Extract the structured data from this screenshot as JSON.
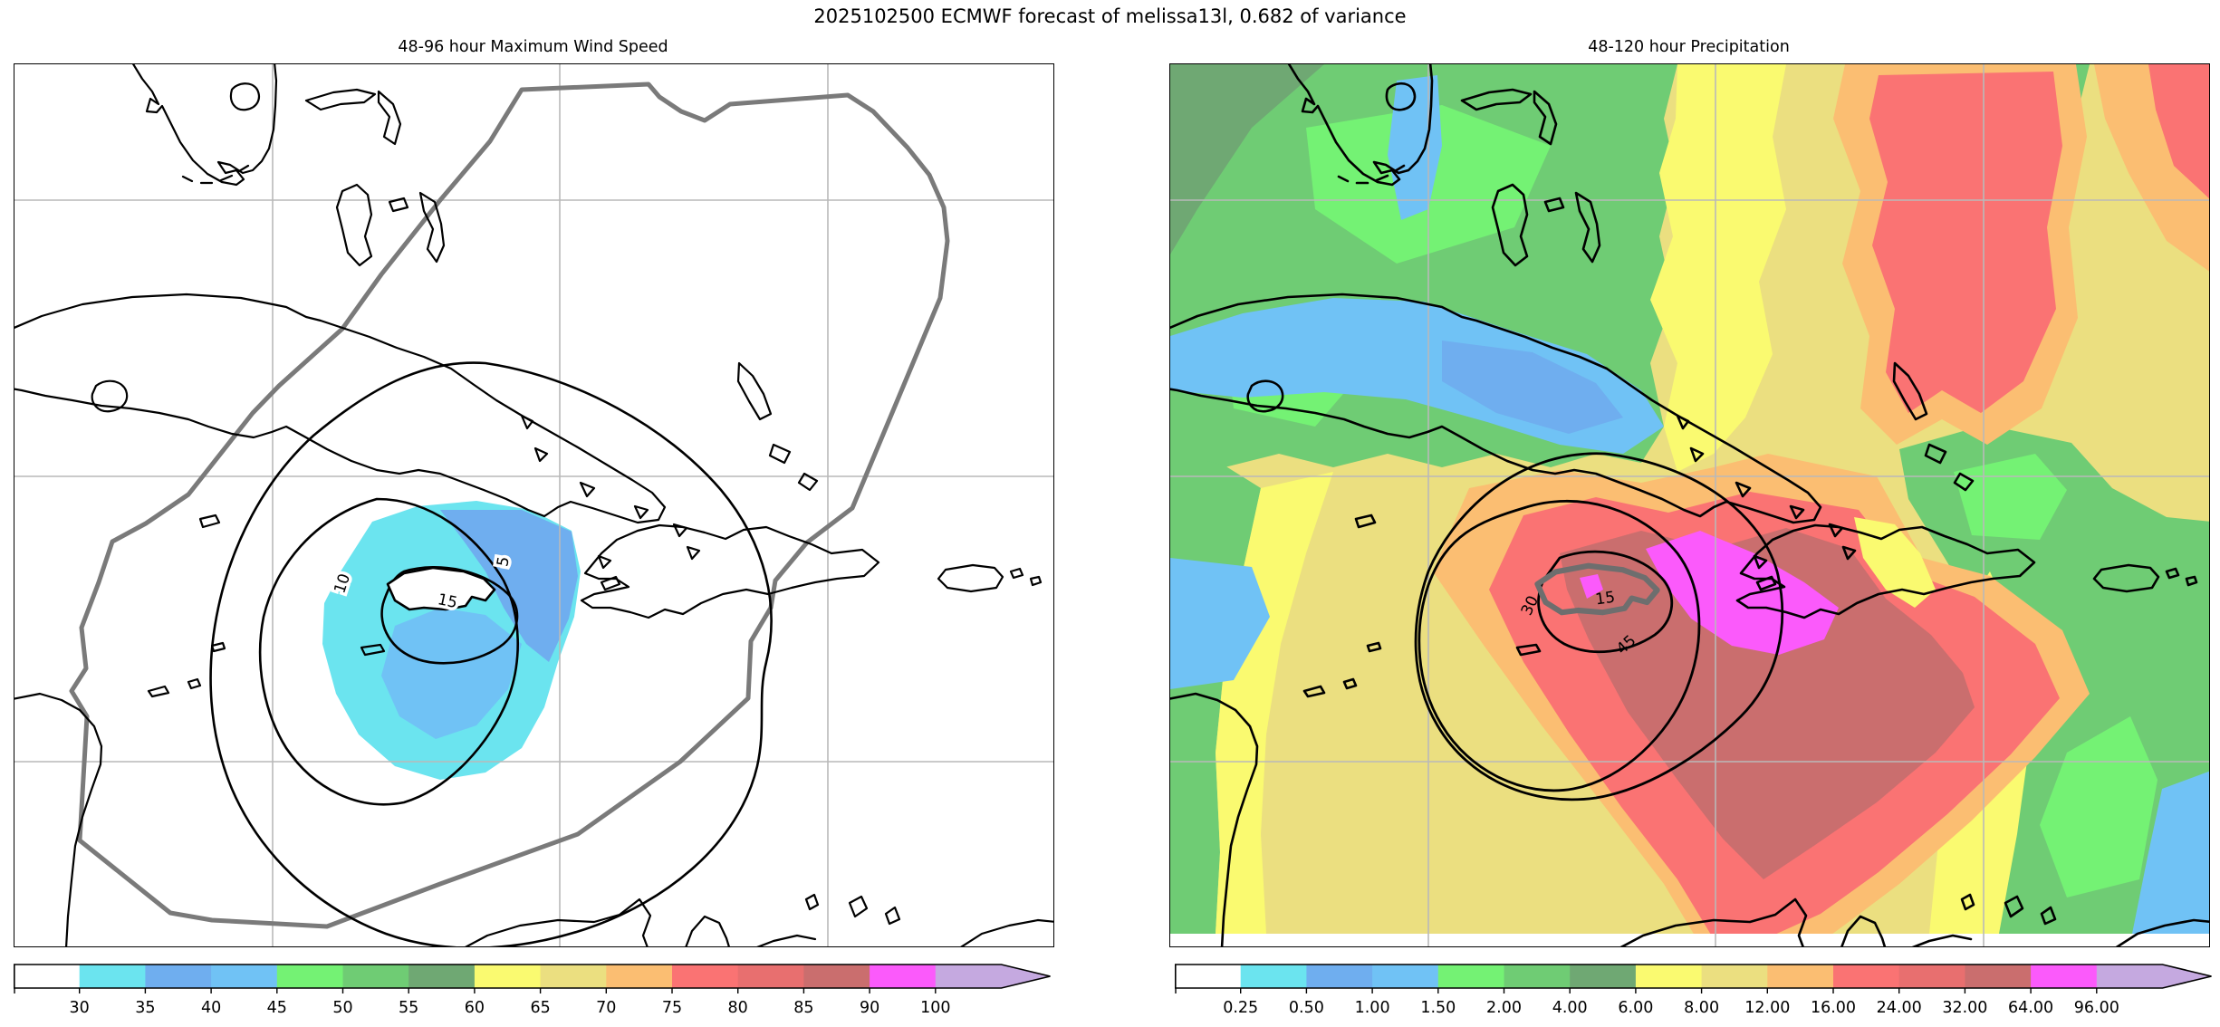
{
  "figure": {
    "title": "2025102500 ECMWF forecast of melissa13l, 0.682 of variance",
    "background": "#ffffff"
  },
  "panels": {
    "wind": {
      "title": "48-96 hour Maximum Wind Speed",
      "contour_labels": [
        "10",
        "5",
        "15"
      ]
    },
    "precip": {
      "title": "48-120 hour Precipitation",
      "contour_labels": [
        "30",
        "45",
        "15"
      ]
    }
  },
  "palette": {
    "white": "#ffffff",
    "cyan": "#6BE4EF",
    "blue": "#6FAEEF",
    "lightblue": "#70C2F5",
    "bright_green": "#74F274",
    "green": "#6FCC74",
    "dark_green": "#6FA873",
    "yellow": "#FAFA70",
    "pale_yellow": "#EBDF80",
    "orange": "#FBBE72",
    "salmon": "#FA7373",
    "red": "#E86F6F",
    "brick": "#CA6E6E",
    "magenta": "#FB5AFB",
    "purple": "#C5A9E0",
    "grid": "#b9b9b9",
    "envelope": "#7a7a7a",
    "coast": "#000000",
    "jamaica_outline": "#6e6e6e"
  },
  "colorbars": {
    "wind": {
      "ticks": [
        "30",
        "35",
        "40",
        "45",
        "50",
        "55",
        "60",
        "65",
        "70",
        "75",
        "80",
        "85",
        "90",
        "100"
      ],
      "segments": [
        "white",
        "cyan",
        "blue",
        "lightblue",
        "bright_green",
        "green",
        "dark_green",
        "yellow",
        "pale_yellow",
        "orange",
        "salmon",
        "red",
        "brick",
        "magenta",
        "purple"
      ]
    },
    "precip": {
      "ticks": [
        "0.25",
        "0.50",
        "1.00",
        "1.50",
        "2.00",
        "4.00",
        "6.00",
        "8.00",
        "12.00",
        "16.00",
        "24.00",
        "32.00",
        "64.00",
        "96.00"
      ],
      "segments": [
        "white",
        "cyan",
        "blue",
        "lightblue",
        "bright_green",
        "green",
        "dark_green",
        "yellow",
        "pale_yellow",
        "orange",
        "salmon",
        "red",
        "brick",
        "magenta",
        "purple"
      ]
    }
  },
  "chart_data": [
    {
      "type": "heatmap",
      "title": "48-96 hour Maximum Wind Speed",
      "legend_position": "bottom",
      "colorbar_levels": [
        30,
        35,
        40,
        45,
        50,
        55,
        60,
        65,
        70,
        75,
        80,
        85,
        90,
        100
      ],
      "colorbar_colors": [
        "#ffffff",
        "#6BE4EF",
        "#6FAEEF",
        "#70C2F5",
        "#74F274",
        "#6FCC74",
        "#6FA873",
        "#FAFA70",
        "#EBDF80",
        "#FBBE72",
        "#FA7373",
        "#E86F6F",
        "#CA6E6E",
        "#FB5AFB",
        "#C5A9E0"
      ],
      "contour_levels_shown": [
        5,
        10,
        15
      ],
      "shaded_maximum_band": "40-45 near Jamaica",
      "notes": "white map with grey forecast-envelope polygon; cyan/blue shading of max wind centered just south-east of Jamaica"
    },
    {
      "type": "heatmap",
      "title": "48-120 hour Precipitation",
      "legend_position": "bottom",
      "colorbar_levels": [
        0.25,
        0.5,
        1.0,
        1.5,
        2.0,
        4.0,
        6.0,
        8.0,
        12.0,
        16.0,
        24.0,
        32.0,
        64.0,
        96.0
      ],
      "colorbar_colors": [
        "#ffffff",
        "#6BE4EF",
        "#6FAEEF",
        "#70C2F5",
        "#74F274",
        "#6FCC74",
        "#6FA873",
        "#FAFA70",
        "#EBDF80",
        "#FBBE72",
        "#FA7373",
        "#E86F6F",
        "#CA6E6E",
        "#FB5AFB",
        "#C5A9E0"
      ],
      "contour_levels_shown": [
        15,
        30,
        45
      ],
      "shaded_maximum_band": "96+ (magenta) east of Jamaica / west of Hispaniola",
      "notes": "green/blue over Florida-Cuba, heavy red/magenta precipitation centered on Jamaica and Hispaniola, red band over SW Atlantic"
    }
  ]
}
